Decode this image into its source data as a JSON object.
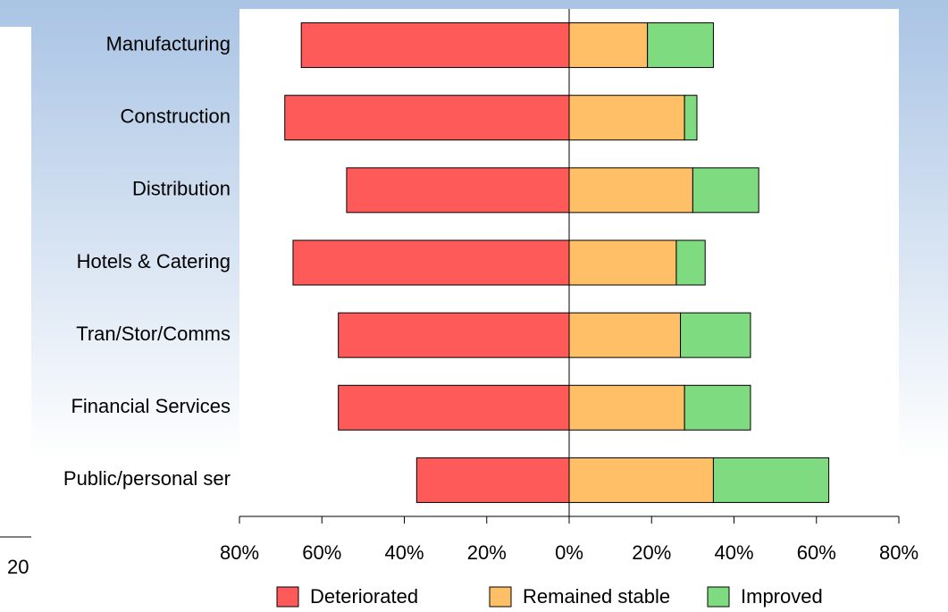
{
  "slide_number": "20",
  "chart_data": {
    "type": "bar",
    "orientation": "horizontal",
    "stacked": true,
    "categories": [
      "Manufacturing",
      "Construction",
      "Distribution",
      "Hotels & Catering",
      "Tran/Stor/Comms",
      "Financial Services",
      "Public/personal ser"
    ],
    "series": [
      {
        "name": "Deteriorated",
        "color": "#ff5a5a",
        "values": [
          -65,
          -69,
          -54,
          -67,
          -56,
          -56,
          -37
        ]
      },
      {
        "name": "Remained stable",
        "color": "#ffbf66",
        "values": [
          19,
          28,
          30,
          26,
          27,
          28,
          35
        ]
      },
      {
        "name": "Improved",
        "color": "#7fdb7f",
        "values": [
          16,
          3,
          16,
          7,
          17,
          16,
          28
        ]
      }
    ],
    "xlim": [
      -80,
      80
    ],
    "xticks": [
      {
        "value": -80,
        "label": "80%"
      },
      {
        "value": -60,
        "label": "60%"
      },
      {
        "value": -40,
        "label": "40%"
      },
      {
        "value": -20,
        "label": "20%"
      },
      {
        "value": 0,
        "label": "0%"
      },
      {
        "value": 20,
        "label": "20%"
      },
      {
        "value": 40,
        "label": "40%"
      },
      {
        "value": 60,
        "label": "60%"
      },
      {
        "value": 80,
        "label": "80%"
      }
    ],
    "legend": "bottom"
  }
}
